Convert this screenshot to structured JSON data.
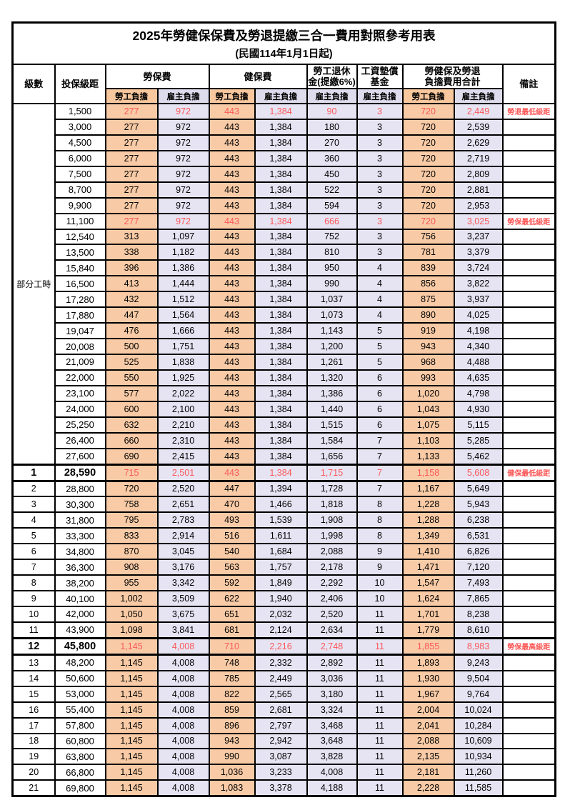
{
  "title": "2025年勞健保保費及勞退提繳三合一費用對照參考用表",
  "subtitle": "(民國114年1月1日起)",
  "header": {
    "level": "級數",
    "salary": "投保級距",
    "labor_insurance": "勞保費",
    "health_insurance": "健保費",
    "pension_line1": "勞工退休",
    "pension_line2": "金(提繳6%)",
    "wage_fund_line1": "工資墊償",
    "wage_fund_line2": "基金",
    "total_line1": "勞健保及勞退",
    "total_line2": "負擔費用合計",
    "remarks": "備註",
    "employee_label": "勞工負擔",
    "employer_label": "雇主負擔"
  },
  "part_time": {
    "label": "部分工時",
    "span": 23
  },
  "colors": {
    "employee_bg": "#F8CBA6",
    "employer_bg": "#E6E4F3",
    "highlight_text": "#FB5858",
    "border": "#000000"
  },
  "rows": [
    {
      "level": null,
      "salary": "1,500",
      "v": [
        "277",
        "972",
        "443",
        "1,384",
        "90",
        "3",
        "720",
        "2,449"
      ],
      "remark": "勞退最低級距",
      "red": true
    },
    {
      "level": null,
      "salary": "3,000",
      "v": [
        "277",
        "972",
        "443",
        "1,384",
        "180",
        "3",
        "720",
        "2,539"
      ],
      "remark": ""
    },
    {
      "level": null,
      "salary": "4,500",
      "v": [
        "277",
        "972",
        "443",
        "1,384",
        "270",
        "3",
        "720",
        "2,629"
      ],
      "remark": ""
    },
    {
      "level": null,
      "salary": "6,000",
      "v": [
        "277",
        "972",
        "443",
        "1,384",
        "360",
        "3",
        "720",
        "2,719"
      ],
      "remark": ""
    },
    {
      "level": null,
      "salary": "7,500",
      "v": [
        "277",
        "972",
        "443",
        "1,384",
        "450",
        "3",
        "720",
        "2,809"
      ],
      "remark": ""
    },
    {
      "level": null,
      "salary": "8,700",
      "v": [
        "277",
        "972",
        "443",
        "1,384",
        "522",
        "3",
        "720",
        "2,881"
      ],
      "remark": ""
    },
    {
      "level": null,
      "salary": "9,900",
      "v": [
        "277",
        "972",
        "443",
        "1,384",
        "594",
        "3",
        "720",
        "2,953"
      ],
      "remark": ""
    },
    {
      "level": null,
      "salary": "11,100",
      "v": [
        "277",
        "972",
        "443",
        "1,384",
        "666",
        "3",
        "720",
        "3,025"
      ],
      "remark": "勞保最低級距",
      "red": true
    },
    {
      "level": null,
      "salary": "12,540",
      "v": [
        "313",
        "1,097",
        "443",
        "1,384",
        "752",
        "3",
        "756",
        "3,237"
      ],
      "remark": ""
    },
    {
      "level": null,
      "salary": "13,500",
      "v": [
        "338",
        "1,182",
        "443",
        "1,384",
        "810",
        "3",
        "781",
        "3,379"
      ],
      "remark": ""
    },
    {
      "level": null,
      "salary": "15,840",
      "v": [
        "396",
        "1,386",
        "443",
        "1,384",
        "950",
        "4",
        "839",
        "3,724"
      ],
      "remark": ""
    },
    {
      "level": null,
      "salary": "16,500",
      "v": [
        "413",
        "1,444",
        "443",
        "1,384",
        "990",
        "4",
        "856",
        "3,822"
      ],
      "remark": ""
    },
    {
      "level": null,
      "salary": "17,280",
      "v": [
        "432",
        "1,512",
        "443",
        "1,384",
        "1,037",
        "4",
        "875",
        "3,937"
      ],
      "remark": ""
    },
    {
      "level": null,
      "salary": "17,880",
      "v": [
        "447",
        "1,564",
        "443",
        "1,384",
        "1,073",
        "4",
        "890",
        "4,025"
      ],
      "remark": ""
    },
    {
      "level": null,
      "salary": "19,047",
      "v": [
        "476",
        "1,666",
        "443",
        "1,384",
        "1,143",
        "5",
        "919",
        "4,198"
      ],
      "remark": ""
    },
    {
      "level": null,
      "salary": "20,008",
      "v": [
        "500",
        "1,751",
        "443",
        "1,384",
        "1,200",
        "5",
        "943",
        "4,340"
      ],
      "remark": ""
    },
    {
      "level": null,
      "salary": "21,009",
      "v": [
        "525",
        "1,838",
        "443",
        "1,384",
        "1,261",
        "5",
        "968",
        "4,488"
      ],
      "remark": ""
    },
    {
      "level": null,
      "salary": "22,000",
      "v": [
        "550",
        "1,925",
        "443",
        "1,384",
        "1,320",
        "6",
        "993",
        "4,635"
      ],
      "remark": ""
    },
    {
      "level": null,
      "salary": "23,100",
      "v": [
        "577",
        "2,022",
        "443",
        "1,384",
        "1,386",
        "6",
        "1,020",
        "4,798"
      ],
      "remark": ""
    },
    {
      "level": null,
      "salary": "24,000",
      "v": [
        "600",
        "2,100",
        "443",
        "1,384",
        "1,440",
        "6",
        "1,043",
        "4,930"
      ],
      "remark": ""
    },
    {
      "level": null,
      "salary": "25,250",
      "v": [
        "632",
        "2,210",
        "443",
        "1,384",
        "1,515",
        "6",
        "1,075",
        "5,115"
      ],
      "remark": ""
    },
    {
      "level": null,
      "salary": "26,400",
      "v": [
        "660",
        "2,310",
        "443",
        "1,384",
        "1,584",
        "7",
        "1,103",
        "5,285"
      ],
      "remark": ""
    },
    {
      "level": null,
      "salary": "27,600",
      "v": [
        "690",
        "2,415",
        "443",
        "1,384",
        "1,656",
        "7",
        "1,133",
        "5,462"
      ],
      "remark": ""
    },
    {
      "level": "1",
      "salary": "28,590",
      "v": [
        "715",
        "2,501",
        "443",
        "1,384",
        "1,715",
        "7",
        "1,158",
        "5,608"
      ],
      "remark": "健保最低級距",
      "red": true,
      "bold": true,
      "thick": true
    },
    {
      "level": "2",
      "salary": "28,800",
      "v": [
        "720",
        "2,520",
        "447",
        "1,394",
        "1,728",
        "7",
        "1,167",
        "5,649"
      ],
      "remark": ""
    },
    {
      "level": "3",
      "salary": "30,300",
      "v": [
        "758",
        "2,651",
        "470",
        "1,466",
        "1,818",
        "8",
        "1,228",
        "5,943"
      ],
      "remark": ""
    },
    {
      "level": "4",
      "salary": "31,800",
      "v": [
        "795",
        "2,783",
        "493",
        "1,539",
        "1,908",
        "8",
        "1,288",
        "6,238"
      ],
      "remark": ""
    },
    {
      "level": "5",
      "salary": "33,300",
      "v": [
        "833",
        "2,914",
        "516",
        "1,611",
        "1,998",
        "8",
        "1,349",
        "6,531"
      ],
      "remark": ""
    },
    {
      "level": "6",
      "salary": "34,800",
      "v": [
        "870",
        "3,045",
        "540",
        "1,684",
        "2,088",
        "9",
        "1,410",
        "6,826"
      ],
      "remark": ""
    },
    {
      "level": "7",
      "salary": "36,300",
      "v": [
        "908",
        "3,176",
        "563",
        "1,757",
        "2,178",
        "9",
        "1,471",
        "7,120"
      ],
      "remark": ""
    },
    {
      "level": "8",
      "salary": "38,200",
      "v": [
        "955",
        "3,342",
        "592",
        "1,849",
        "2,292",
        "10",
        "1,547",
        "7,493"
      ],
      "remark": ""
    },
    {
      "level": "9",
      "salary": "40,100",
      "v": [
        "1,002",
        "3,509",
        "622",
        "1,940",
        "2,406",
        "10",
        "1,624",
        "7,865"
      ],
      "remark": ""
    },
    {
      "level": "10",
      "salary": "42,000",
      "v": [
        "1,050",
        "3,675",
        "651",
        "2,032",
        "2,520",
        "11",
        "1,701",
        "8,238"
      ],
      "remark": ""
    },
    {
      "level": "11",
      "salary": "43,900",
      "v": [
        "1,098",
        "3,841",
        "681",
        "2,124",
        "2,634",
        "11",
        "1,779",
        "8,610"
      ],
      "remark": ""
    },
    {
      "level": "12",
      "salary": "45,800",
      "v": [
        "1,145",
        "4,008",
        "710",
        "2,216",
        "2,748",
        "11",
        "1,855",
        "8,983"
      ],
      "remark": "勞保最高級距",
      "red": true,
      "bold": true,
      "thick": true
    },
    {
      "level": "13",
      "salary": "48,200",
      "v": [
        "1,145",
        "4,008",
        "748",
        "2,332",
        "2,892",
        "11",
        "1,893",
        "9,243"
      ],
      "remark": ""
    },
    {
      "level": "14",
      "salary": "50,600",
      "v": [
        "1,145",
        "4,008",
        "785",
        "2,449",
        "3,036",
        "11",
        "1,930",
        "9,504"
      ],
      "remark": ""
    },
    {
      "level": "15",
      "salary": "53,000",
      "v": [
        "1,145",
        "4,008",
        "822",
        "2,565",
        "3,180",
        "11",
        "1,967",
        "9,764"
      ],
      "remark": ""
    },
    {
      "level": "16",
      "salary": "55,400",
      "v": [
        "1,145",
        "4,008",
        "859",
        "2,681",
        "3,324",
        "11",
        "2,004",
        "10,024"
      ],
      "remark": ""
    },
    {
      "level": "17",
      "salary": "57,800",
      "v": [
        "1,145",
        "4,008",
        "896",
        "2,797",
        "3,468",
        "11",
        "2,041",
        "10,284"
      ],
      "remark": ""
    },
    {
      "level": "18",
      "salary": "60,800",
      "v": [
        "1,145",
        "4,008",
        "943",
        "2,942",
        "3,648",
        "11",
        "2,088",
        "10,609"
      ],
      "remark": ""
    },
    {
      "level": "19",
      "salary": "63,800",
      "v": [
        "1,145",
        "4,008",
        "990",
        "3,087",
        "3,828",
        "11",
        "2,135",
        "10,934"
      ],
      "remark": ""
    },
    {
      "level": "20",
      "salary": "66,800",
      "v": [
        "1,145",
        "4,008",
        "1,036",
        "3,233",
        "4,008",
        "11",
        "2,181",
        "11,260"
      ],
      "remark": ""
    },
    {
      "level": "21",
      "salary": "69,800",
      "v": [
        "1,145",
        "4,008",
        "1,083",
        "3,378",
        "4,188",
        "11",
        "2,228",
        "11,585"
      ],
      "remark": ""
    }
  ]
}
